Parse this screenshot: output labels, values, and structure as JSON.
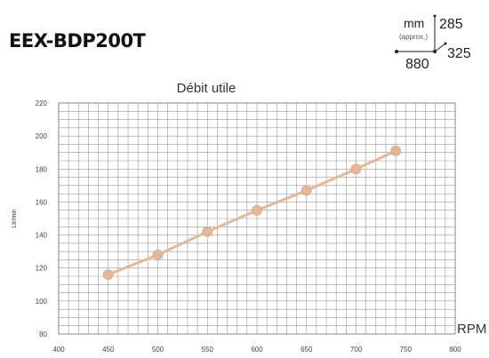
{
  "header": {
    "model": "EEX-BDP200T"
  },
  "dimensions": {
    "unit": "mm",
    "approx": "(approx.)",
    "height": "285",
    "width": "880",
    "depth": "325"
  },
  "chart_data": {
    "type": "line",
    "title": "Débit utile",
    "xlabel": "RPM",
    "ylabel": "Ltr/min",
    "xlim": [
      400,
      800
    ],
    "ylim": [
      80,
      220
    ],
    "x_ticks": [
      400,
      450,
      500,
      550,
      600,
      650,
      700,
      750,
      800
    ],
    "y_ticks": [
      80,
      100,
      120,
      140,
      160,
      180,
      200,
      220
    ],
    "grid": true,
    "series": [
      {
        "color": "#e3b899",
        "x": [
          450,
          500,
          550,
          600,
          650,
          700,
          740
        ],
        "y": [
          116,
          128,
          142,
          155,
          167,
          180,
          191
        ]
      }
    ]
  }
}
